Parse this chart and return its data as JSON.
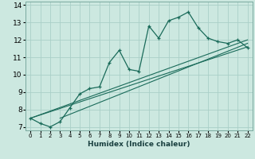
{
  "xlabel": "Humidex (Indice chaleur)",
  "ylabel": "",
  "bg_color": "#cce8e0",
  "line_color": "#1a6b5a",
  "grid_color": "#aacfc8",
  "xlim": [
    -0.5,
    22.5
  ],
  "ylim": [
    6.8,
    14.2
  ],
  "xticks": [
    0,
    1,
    2,
    3,
    4,
    5,
    6,
    7,
    8,
    9,
    10,
    11,
    12,
    13,
    14,
    15,
    16,
    17,
    18,
    19,
    20,
    21,
    22
  ],
  "yticks": [
    7,
    8,
    9,
    10,
    11,
    12,
    13,
    14
  ],
  "main_x": [
    0,
    1,
    2,
    3,
    4,
    5,
    6,
    7,
    8,
    9,
    10,
    11,
    12,
    13,
    14,
    15,
    16,
    17,
    18,
    19,
    20,
    21,
    22
  ],
  "main_y": [
    7.5,
    7.2,
    7.0,
    7.3,
    8.1,
    8.9,
    9.2,
    9.3,
    10.7,
    11.4,
    10.3,
    10.2,
    12.8,
    12.1,
    13.1,
    13.3,
    13.6,
    12.7,
    12.1,
    11.9,
    11.8,
    12.0,
    11.55
  ],
  "line1_x": [
    0,
    22
  ],
  "line1_y": [
    7.5,
    12.0
  ],
  "line2_x": [
    0,
    22
  ],
  "line2_y": [
    7.5,
    11.6
  ],
  "line3_x": [
    3,
    22
  ],
  "line3_y": [
    7.5,
    11.8
  ]
}
